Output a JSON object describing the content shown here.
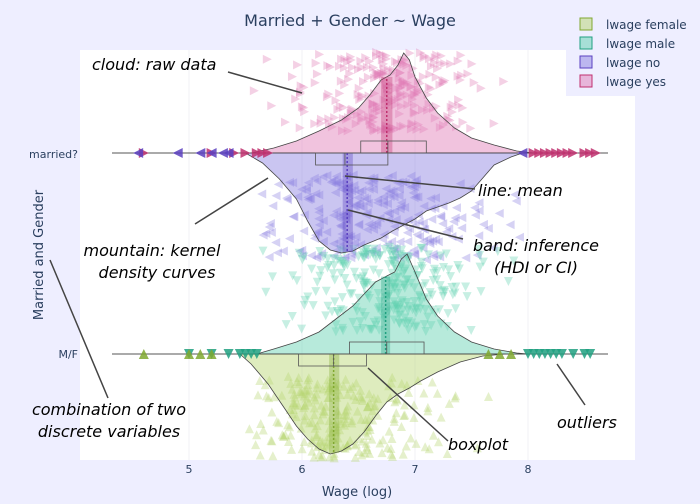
{
  "chart_data": {
    "type": "violin",
    "title": "Married + Gender ~ Wage",
    "xlabel": "Wage (log)",
    "ylabel": "Married and Gender",
    "xlim": [
      4.05,
      8.95
    ],
    "x_ticks": [
      "5",
      "6",
      "7",
      "8"
    ],
    "y_categories": [
      "married?",
      "M/F"
    ],
    "legend": {
      "position": "top-right",
      "items": [
        {
          "label": "lwage female",
          "color": "#b5d46e"
        },
        {
          "label": "lwage male",
          "color": "#5fd0b0"
        },
        {
          "label": "lwage no",
          "color": "#8a7fe0"
        },
        {
          "label": "lwage yes",
          "color": "#e07bb5"
        }
      ]
    },
    "series": [
      {
        "name": "lwage yes",
        "category": "married?",
        "side": "top",
        "color": "#e07bb5",
        "line": "#c0306f",
        "marker": "triangle-right",
        "mean": 6.75,
        "median": 6.76,
        "q1": 6.52,
        "q3": 7.1,
        "band": [
          6.7,
          6.8
        ],
        "kde": [
          [
            5.55,
            0
          ],
          [
            5.75,
            0.05
          ],
          [
            5.95,
            0.12
          ],
          [
            6.15,
            0.22
          ],
          [
            6.35,
            0.33
          ],
          [
            6.5,
            0.45
          ],
          [
            6.6,
            0.58
          ],
          [
            6.7,
            0.73
          ],
          [
            6.78,
            0.78
          ],
          [
            6.85,
            0.88
          ],
          [
            6.9,
            1.0
          ],
          [
            6.95,
            0.93
          ],
          [
            7.0,
            0.76
          ],
          [
            7.1,
            0.55
          ],
          [
            7.2,
            0.4
          ],
          [
            7.35,
            0.25
          ],
          [
            7.5,
            0.15
          ],
          [
            7.7,
            0.08
          ],
          [
            7.9,
            0.02
          ],
          [
            8.05,
            0
          ]
        ],
        "outliers": [
          4.6,
          5.2,
          5.4,
          5.5,
          5.6,
          5.65,
          5.7,
          8.05,
          8.1,
          8.15,
          8.2,
          8.25,
          8.3,
          8.35,
          8.4,
          8.5,
          8.55,
          8.6
        ]
      },
      {
        "name": "lwage no",
        "category": "married?",
        "side": "bottom",
        "color": "#8a7fe0",
        "line": "#5a40c0",
        "marker": "triangle-left",
        "mean": 6.4,
        "median": 6.38,
        "q1": 6.12,
        "q3": 6.76,
        "band": [
          6.36,
          6.45
        ],
        "kde": [
          [
            5.5,
            0
          ],
          [
            5.65,
            0.1
          ],
          [
            5.8,
            0.26
          ],
          [
            5.95,
            0.46
          ],
          [
            6.05,
            0.68
          ],
          [
            6.15,
            0.88
          ],
          [
            6.25,
            0.97
          ],
          [
            6.35,
            1.0
          ],
          [
            6.45,
            0.98
          ],
          [
            6.55,
            0.92
          ],
          [
            6.7,
            0.85
          ],
          [
            6.8,
            0.78
          ],
          [
            6.9,
            0.72
          ],
          [
            7.0,
            0.66
          ],
          [
            7.1,
            0.58
          ],
          [
            7.3,
            0.5
          ],
          [
            7.4,
            0.45
          ],
          [
            7.5,
            0.38
          ],
          [
            7.6,
            0.25
          ],
          [
            7.7,
            0.12
          ],
          [
            7.85,
            0.04
          ],
          [
            7.95,
            0
          ]
        ],
        "outliers": [
          4.55,
          4.9,
          5.1,
          5.2,
          5.3,
          5.35,
          7.95
        ]
      },
      {
        "name": "lwage male",
        "category": "M/F",
        "side": "top",
        "color": "#5fd0b0",
        "line": "#20a080",
        "marker": "triangle-down",
        "mean": 6.74,
        "median": 6.75,
        "q1": 6.42,
        "q3": 7.08,
        "band": [
          6.7,
          6.78
        ],
        "kde": [
          [
            5.6,
            0
          ],
          [
            5.75,
            0.05
          ],
          [
            5.95,
            0.12
          ],
          [
            6.15,
            0.22
          ],
          [
            6.3,
            0.35
          ],
          [
            6.45,
            0.48
          ],
          [
            6.55,
            0.6
          ],
          [
            6.65,
            0.72
          ],
          [
            6.75,
            0.78
          ],
          [
            6.82,
            0.82
          ],
          [
            6.88,
            0.95
          ],
          [
            6.93,
            1.0
          ],
          [
            7.0,
            0.82
          ],
          [
            7.1,
            0.55
          ],
          [
            7.2,
            0.38
          ],
          [
            7.35,
            0.22
          ],
          [
            7.5,
            0.12
          ],
          [
            7.7,
            0.05
          ],
          [
            7.9,
            0.01
          ],
          [
            8.0,
            0
          ]
        ],
        "outliers": [
          5.0,
          5.2,
          5.35,
          5.45,
          5.5,
          5.55,
          5.6,
          8.0,
          8.05,
          8.1,
          8.15,
          8.2,
          8.25,
          8.3,
          8.4,
          8.5,
          8.55
        ]
      },
      {
        "name": "lwage female",
        "category": "M/F",
        "side": "bottom",
        "color": "#b5d46e",
        "line": "#80a830",
        "marker": "triangle-up",
        "mean": 6.28,
        "median": 6.28,
        "q1": 5.97,
        "q3": 6.57,
        "band": [
          6.24,
          6.33
        ],
        "kde": [
          [
            5.45,
            0
          ],
          [
            5.55,
            0.1
          ],
          [
            5.7,
            0.3
          ],
          [
            5.85,
            0.55
          ],
          [
            5.95,
            0.72
          ],
          [
            6.05,
            0.85
          ],
          [
            6.15,
            0.95
          ],
          [
            6.25,
            1.0
          ],
          [
            6.35,
            0.97
          ],
          [
            6.45,
            0.9
          ],
          [
            6.55,
            0.78
          ],
          [
            6.65,
            0.62
          ],
          [
            6.75,
            0.48
          ],
          [
            6.85,
            0.4
          ],
          [
            6.95,
            0.34
          ],
          [
            7.05,
            0.27
          ],
          [
            7.2,
            0.18
          ],
          [
            7.4,
            0.08
          ],
          [
            7.6,
            0.02
          ],
          [
            7.8,
            0
          ]
        ],
        "outliers": [
          4.6,
          5.0,
          5.1,
          5.2,
          7.65,
          7.75,
          7.85
        ]
      }
    ],
    "annotations": [
      {
        "text": "cloud: raw data"
      },
      {
        "text": "line: mean"
      },
      {
        "text": "mountain: kernel"
      },
      {
        "text": "density curves"
      },
      {
        "text": "band: inference"
      },
      {
        "text": "(HDI or CI)"
      },
      {
        "text": "combination of two"
      },
      {
        "text": "discrete variables"
      },
      {
        "text": "boxplot"
      },
      {
        "text": "outliers"
      }
    ]
  }
}
